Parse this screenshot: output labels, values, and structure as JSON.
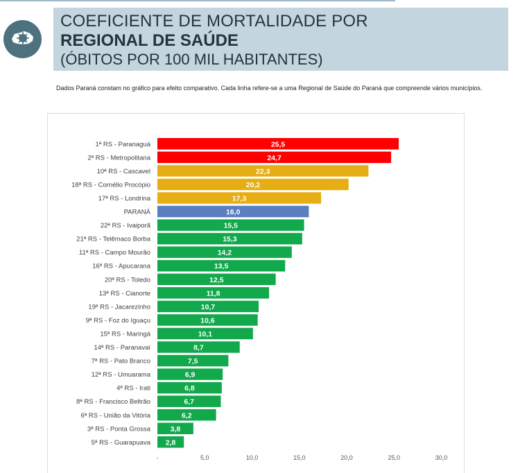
{
  "header": {
    "line1": "COEFICIENTE DE MORTALIDADE POR",
    "line2": "REGIONAL DE SAÚDE",
    "line3": "(ÓBITOS POR 100 MIL HABITANTES)"
  },
  "note": "Dados Paraná constam no gráfico para efeito comparativo. Cada linha refere-se a uma Regional de Saúde do Paraná que compreende vários municípios.",
  "icon": "virus-map-icon",
  "colors": {
    "red": "#ff0000",
    "yellow": "#e6ad14",
    "blue": "#5a7fc0",
    "green": "#12a84c",
    "header_bg": "#c3d5df",
    "logo_bg": "#4e7180"
  },
  "chart_data": {
    "type": "bar",
    "orientation": "horizontal",
    "categories": [
      "1ª RS - Paranaguá",
      "2ª RS - Metropolitana",
      "10ª RS - Cascavel",
      "18ª RS - Cornélio Procópio",
      "17ª RS - Londrina",
      "PARANÁ",
      "22ª RS - Ivaiporã",
      "21ª RS - Telêmaco Borba",
      "11ª RS - Campo Mourão",
      "16ª RS - Apucarana",
      "20ª RS - Toledo",
      "13ª RS - Cianorte",
      "19ª RS - Jacarezinho",
      "9ª RS - Foz do Iguaçu",
      "15ª RS - Maringá",
      "14ª RS - Paranavaí",
      "7ª RS - Pato Branco",
      "12ª RS - Umuarama",
      "4ª RS - Irati",
      "8ª RS - Francisco Beltrão",
      "6ª RS - União da Vitória",
      "3ª RS - Ponta Grossa",
      "5ª RS - Guarapuava"
    ],
    "values": [
      25.5,
      24.7,
      22.3,
      20.2,
      17.3,
      16.0,
      15.5,
      15.3,
      14.2,
      13.5,
      12.5,
      11.8,
      10.7,
      10.6,
      10.1,
      8.7,
      7.5,
      6.9,
      6.8,
      6.7,
      6.2,
      3.8,
      2.8
    ],
    "labels": [
      "25,5",
      "24,7",
      "22,3",
      "20,2",
      "17,3",
      "16,0",
      "15,5",
      "15,3",
      "14,2",
      "13,5",
      "12,5",
      "11,8",
      "10,7",
      "10,6",
      "10,1",
      "8,7",
      "7,5",
      "6,9",
      "6,8",
      "6,7",
      "6,2",
      "3,8",
      "2,8"
    ],
    "bar_colors": [
      "red",
      "red",
      "yellow",
      "yellow",
      "yellow",
      "blue",
      "green",
      "green",
      "green",
      "green",
      "green",
      "green",
      "green",
      "green",
      "green",
      "green",
      "green",
      "green",
      "green",
      "green",
      "green",
      "green",
      "green"
    ],
    "xlim": [
      0,
      30
    ],
    "xticks": [
      "-",
      "5,0",
      "10,0",
      "15,0",
      "20,0",
      "25,0",
      "30,0"
    ],
    "grid": false,
    "legend": "none"
  }
}
